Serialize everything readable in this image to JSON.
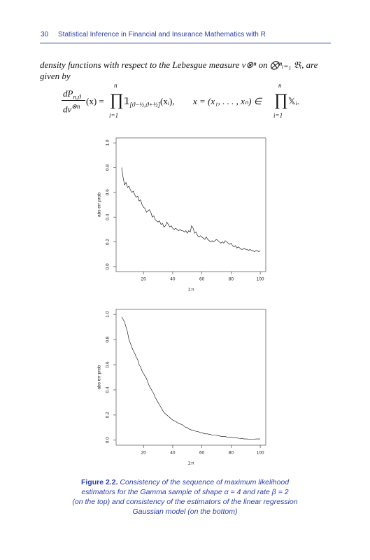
{
  "header": {
    "page_number": "30",
    "title": "Statistical Inference in Financial and Insurance Mathematics with R"
  },
  "body": {
    "lines": [
      "density functions with respect to the Lebesgue measure ν⊗ⁿ on ⨂ⁿᵢ₌₁ 𝔅ᵢ, are",
      "given by"
    ]
  },
  "equation": {
    "numerator": "dP",
    "numerator_sub": "n,ϑ",
    "denominator": "dν",
    "denominator_sup": "⊗n",
    "after_fraction": "(x) =",
    "product_1": "∏",
    "product_1_top": "n",
    "product_1_bottom": "i=1",
    "indicator": "𝟙",
    "indicator_sub": "[ϑ−½,ϑ+½]",
    "indicator_arg": "(xᵢ),",
    "middle": "x = (x₁, . . . , xₙ) ∈",
    "product_2": "∏",
    "product_2_top": "n",
    "product_2_bottom": "i=1",
    "tail": "𝕏ᵢ."
  },
  "chart_data": [
    {
      "type": "line",
      "color": "#000000",
      "xlabel": "1:n",
      "ylabel": "abs err prob",
      "x": [
        5,
        6,
        7,
        8,
        9,
        10,
        11,
        12,
        13,
        14,
        15,
        16,
        17,
        18,
        19,
        20,
        21,
        22,
        23,
        24,
        25,
        26,
        27,
        28,
        29,
        30,
        31,
        32,
        33,
        34,
        35,
        36,
        37,
        38,
        39,
        40,
        41,
        42,
        43,
        44,
        45,
        46,
        47,
        48,
        49,
        50,
        51,
        52,
        53,
        54,
        55,
        56,
        57,
        58,
        59,
        60,
        61,
        62,
        63,
        64,
        65,
        66,
        67,
        68,
        69,
        70,
        71,
        72,
        73,
        74,
        75,
        76,
        77,
        78,
        79,
        80,
        81,
        82,
        83,
        84,
        85,
        86,
        87,
        88,
        89,
        90,
        91,
        92,
        93,
        94,
        95,
        96,
        97,
        98,
        99,
        100
      ],
      "values": [
        0.8,
        0.72,
        0.66,
        0.68,
        0.64,
        0.65,
        0.62,
        0.6,
        0.61,
        0.58,
        0.56,
        0.57,
        0.53,
        0.54,
        0.5,
        0.48,
        0.47,
        0.44,
        0.45,
        0.46,
        0.44,
        0.4,
        0.41,
        0.38,
        0.37,
        0.36,
        0.37,
        0.34,
        0.35,
        0.32,
        0.33,
        0.36,
        0.34,
        0.32,
        0.33,
        0.31,
        0.3,
        0.31,
        0.3,
        0.29,
        0.3,
        0.29,
        0.29,
        0.28,
        0.29,
        0.27,
        0.29,
        0.28,
        0.33,
        0.31,
        0.27,
        0.28,
        0.25,
        0.24,
        0.25,
        0.24,
        0.23,
        0.22,
        0.24,
        0.22,
        0.21,
        0.2,
        0.21,
        0.2,
        0.21,
        0.22,
        0.21,
        0.2,
        0.19,
        0.2,
        0.19,
        0.21,
        0.2,
        0.19,
        0.18,
        0.19,
        0.17,
        0.16,
        0.17,
        0.15,
        0.16,
        0.15,
        0.14,
        0.14,
        0.15,
        0.14,
        0.14,
        0.13,
        0.14,
        0.13,
        0.13,
        0.12,
        0.13,
        0.13,
        0.12,
        0.13
      ],
      "xlim": [
        1.2,
        103.8
      ],
      "xticks": [
        20,
        40,
        60,
        80,
        100
      ],
      "ylim": [
        -0.04,
        1.04
      ],
      "yticks": [
        {
          "value": 0,
          "label": "0.0"
        },
        0.2,
        0.4,
        0.6,
        0.8,
        {
          "value": 1,
          "label": "1.0"
        }
      ]
    },
    {
      "type": "line",
      "color": "#000000",
      "xlabel": "1:n",
      "ylabel": "abs err prob",
      "x": [
        5,
        6,
        7,
        8,
        9,
        10,
        11,
        12,
        13,
        14,
        15,
        16,
        17,
        18,
        19,
        20,
        21,
        22,
        23,
        24,
        25,
        26,
        27,
        28,
        29,
        30,
        31,
        32,
        33,
        34,
        35,
        36,
        37,
        38,
        39,
        40,
        41,
        42,
        43,
        44,
        45,
        46,
        47,
        48,
        49,
        50,
        51,
        52,
        53,
        54,
        55,
        56,
        57,
        58,
        59,
        60,
        61,
        62,
        63,
        64,
        65,
        66,
        67,
        68,
        69,
        70,
        71,
        72,
        73,
        74,
        75,
        76,
        77,
        78,
        79,
        80,
        81,
        82,
        83,
        84,
        85,
        86,
        87,
        88,
        89,
        90,
        91,
        92,
        93,
        94,
        95,
        96,
        97,
        98,
        99,
        100
      ],
      "values": [
        0.98,
        0.96,
        0.94,
        0.9,
        0.86,
        0.8,
        0.77,
        0.74,
        0.71,
        0.69,
        0.66,
        0.64,
        0.6,
        0.58,
        0.55,
        0.53,
        0.51,
        0.49,
        0.46,
        0.43,
        0.41,
        0.39,
        0.37,
        0.34,
        0.32,
        0.3,
        0.28,
        0.26,
        0.24,
        0.22,
        0.21,
        0.2,
        0.19,
        0.18,
        0.17,
        0.16,
        0.155,
        0.15,
        0.14,
        0.135,
        0.13,
        0.125,
        0.12,
        0.11,
        0.1,
        0.1,
        0.09,
        0.085,
        0.08,
        0.08,
        0.075,
        0.07,
        0.07,
        0.065,
        0.06,
        0.06,
        0.055,
        0.05,
        0.05,
        0.05,
        0.045,
        0.045,
        0.04,
        0.04,
        0.04,
        0.04,
        0.035,
        0.035,
        0.03,
        0.03,
        0.03,
        0.03,
        0.025,
        0.025,
        0.025,
        0.025,
        0.02,
        0.02,
        0.02,
        0.018,
        0.015,
        0.015,
        0.012,
        0.012,
        0.01,
        0.01,
        0.01,
        0.008,
        0.008,
        0.008,
        0.008,
        0.008,
        0.01,
        0.01,
        0.01,
        0.01
      ],
      "xlim": [
        1.2,
        103.8
      ],
      "xticks": [
        20,
        40,
        60,
        80,
        100
      ],
      "ylim": [
        -0.04,
        1.04
      ],
      "yticks": [
        {
          "value": 0,
          "label": "0.0"
        },
        0.2,
        0.4,
        0.6,
        0.8,
        {
          "value": 1,
          "label": "1.0"
        }
      ]
    }
  ],
  "caption": {
    "label": "Figure 2.2.",
    "lines": [
      "Consistency of the sequence of maximum likelihood",
      "estimators for the Gamma sample of shape α = 4 and rate β = 2",
      "(on the top) and consistency of the estimators of the linear regression",
      "Gaussian model (on the bottom)"
    ]
  }
}
